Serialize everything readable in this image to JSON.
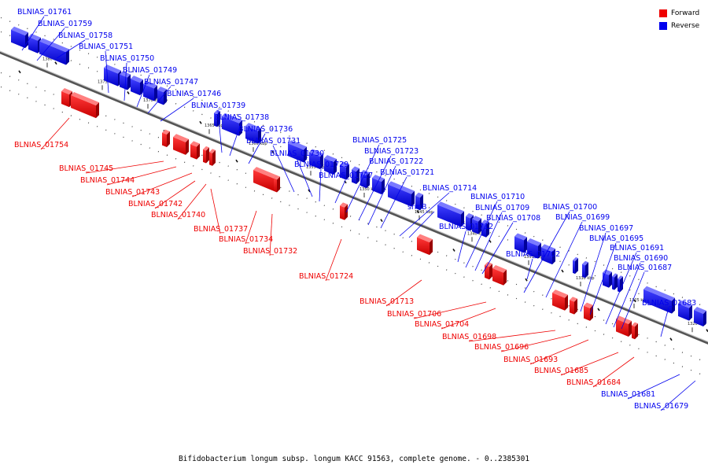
{
  "legend": [
    {
      "label": "Forward",
      "color": "#ee0000"
    },
    {
      "label": "Reverse",
      "color": "#0000ee"
    }
  ],
  "caption": "Bifidobacterium longum subsp. longum KACC 91563, complete genome. - 0..2385301",
  "ticks": [
    "1380 kbp",
    "1375 kbp",
    "1370 kbp",
    "1365 kbp",
    "1360 kbp",
    "1355 kbp",
    "1350 kbp",
    "1345 kbp",
    "1340 kbp",
    "1335 kbp",
    "1330 kbp",
    "1325 kbp",
    "1320 kbp"
  ],
  "reverse_labels": [
    "BLNIAS_01761",
    "BLNIAS_01759",
    "BLNIAS_01758",
    "BLNIAS_01751",
    "BLNIAS_01750",
    "BLNIAS_01749",
    "BLNIAS_01747",
    "BLNIAS_01746",
    "BLNIAS_01739",
    "BLNIAS_01738",
    "BLNIAS_01736",
    "BLNIAS_01731",
    "BLNIAS_01730",
    "BLNIAS_01729",
    "BLNIAS_01727",
    "BLNIAS_01725",
    "BLNIAS_01723",
    "BLNIAS_01722",
    "BLNIAS_01721",
    "BLNIAS_01714",
    "srmB",
    "BLNIAS_01710",
    "BLNIAS_01709",
    "BLNIAS_01708",
    "BLNIAS_01712",
    "BLNIAS_01702",
    "BLNIAS_01700",
    "BLNIAS_01699",
    "BLNIAS_01697",
    "BLNIAS_01695",
    "BLNIAS_01691",
    "BLNIAS_01690",
    "BLNIAS_01687",
    "BLNIAS_01683",
    "BLNIAS_01681",
    "BLNIAS_01679"
  ],
  "forward_labels": [
    "BLNIAS_01754",
    "BLNIAS_01745",
    "BLNIAS_01744",
    "BLNIAS_01743",
    "BLNIAS_01742",
    "BLNIAS_01740",
    "BLNIAS_01737",
    "BLNIAS_01734",
    "BLNIAS_01732",
    "BLNIAS_01724",
    "BLNIAS_01713",
    "BLNIAS_01706",
    "BLNIAS_01704",
    "BLNIAS_01698",
    "BLNIAS_01696",
    "BLNIAS_01693",
    "BLNIAS_01685",
    "BLNIAS_01684"
  ]
}
